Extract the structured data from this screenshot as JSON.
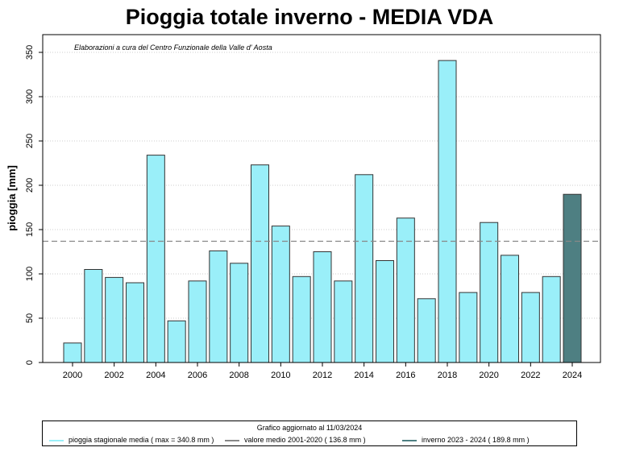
{
  "chart_data": {
    "type": "bar",
    "title": "Pioggia totale inverno - MEDIA VDA",
    "subtitle": "Elaborazioni a cura del Centro Funzionale della Valle d' Aosta",
    "ylabel": "pioggia [mm]",
    "ylim": [
      0,
      370
    ],
    "yticks": [
      0,
      50,
      100,
      150,
      200,
      250,
      300,
      350
    ],
    "grid": true,
    "categories": [
      2000,
      2001,
      2002,
      2003,
      2004,
      2005,
      2006,
      2007,
      2008,
      2009,
      2010,
      2011,
      2012,
      2013,
      2014,
      2015,
      2016,
      2017,
      2018,
      2019,
      2020,
      2021,
      2022,
      2023,
      2024
    ],
    "xtick_labels": [
      "2000",
      "2002",
      "2004",
      "2006",
      "2008",
      "2010",
      "2012",
      "2014",
      "2016",
      "2018",
      "2020",
      "2022",
      "2024"
    ],
    "values": [
      22,
      105,
      96,
      90,
      234,
      47,
      92,
      126,
      112,
      223,
      154,
      97,
      125,
      92,
      212,
      115,
      163,
      72,
      340.8,
      79,
      158,
      121,
      79,
      97,
      189.8
    ],
    "highlight_index": 24,
    "mean_line": 136.8,
    "colors": {
      "bar": "#9aeff9",
      "highlight": "#4e7f82",
      "mean_line": "#888888",
      "bar_stroke": "#333333"
    },
    "legend": {
      "title": "Grafico aggiornato al 11/03/2024",
      "placement": "bottom",
      "items": [
        {
          "label": "pioggia stagionale media ( max =  340.8  mm )",
          "color": "#9aeff9"
        },
        {
          "label": "valore medio 2001-2020 (  136.8  mm )",
          "color": "#888888"
        },
        {
          "label": "inverno 2023 - 2024 (  189.8  mm )",
          "color": "#4e7f82"
        }
      ]
    }
  }
}
